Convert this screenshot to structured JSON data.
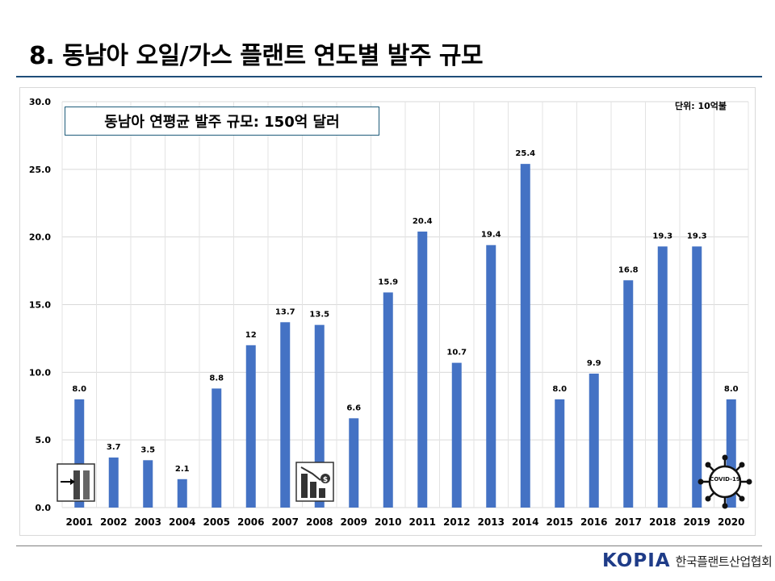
{
  "header": {
    "title": "8. 동남아 오일/가스 플랜트 연도별 발주 규모"
  },
  "annotations": {
    "average_box": "동남아 연평균 발주 규모: 150억 달러",
    "unit": "단위: 10억불",
    "covid_icon_text": "COVID-19"
  },
  "logo": {
    "mark": "KOPIA",
    "org": "한국플랜트산업협회"
  },
  "colors": {
    "bar": "#4472c4",
    "title_rule": "#1f4e79",
    "logo": "#1f3c88"
  },
  "icons": [
    "oil-tank-icon",
    "falling-revenue-chart-icon",
    "covid-virus-icon"
  ],
  "chart_data": {
    "type": "bar",
    "categories": [
      "2001",
      "2002",
      "2003",
      "2004",
      "2005",
      "2006",
      "2007",
      "2008",
      "2009",
      "2010",
      "2011",
      "2012",
      "2013",
      "2014",
      "2015",
      "2016",
      "2017",
      "2018",
      "2019",
      "2020"
    ],
    "values": [
      8.0,
      3.7,
      3.5,
      2.1,
      8.8,
      12,
      13.7,
      13.5,
      6.6,
      15.9,
      20.4,
      10.7,
      19.4,
      25.4,
      8.0,
      9.9,
      16.8,
      19.3,
      19.3,
      8.0
    ],
    "data_labels": [
      "8.0",
      "3.7",
      "3.5",
      "2.1",
      "8.8",
      "12",
      "13.7",
      "13.5",
      "6.6",
      "15.9",
      "20.4",
      "10.7",
      "19.4",
      "25.4",
      "8.0",
      "9.9",
      "16.8",
      "19.3",
      "19.3",
      "8.0"
    ],
    "yticks": [
      "0.0",
      "5.0",
      "10.0",
      "15.0",
      "20.0",
      "25.0",
      "30.0"
    ],
    "ylim": [
      0,
      30
    ],
    "grid": true,
    "legend": "none"
  }
}
